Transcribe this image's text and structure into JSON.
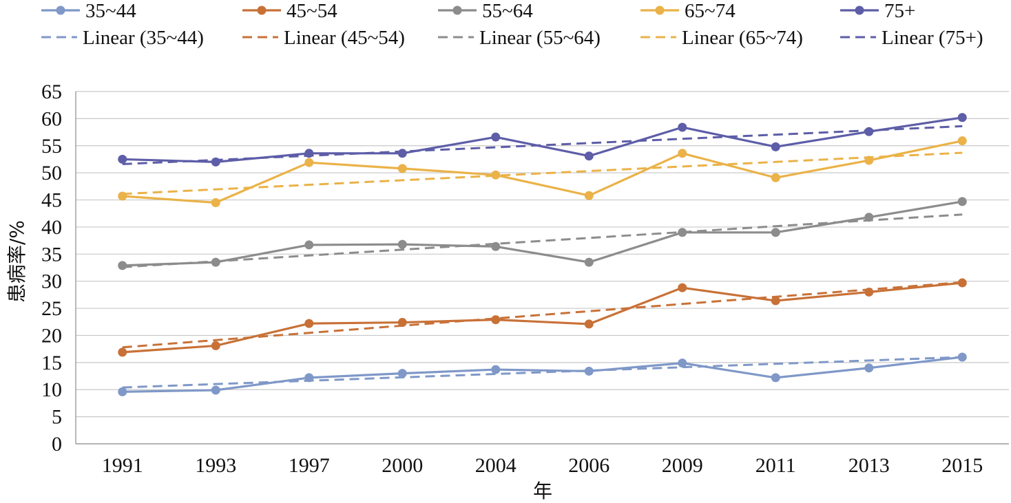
{
  "chart_data": {
    "type": "line",
    "xlabel": "年",
    "ylabel": "患病率/%",
    "ylim": [
      0,
      65
    ],
    "yticks": [
      0,
      5,
      10,
      15,
      20,
      25,
      30,
      35,
      40,
      45,
      50,
      55,
      60,
      65
    ],
    "categories": [
      "1991",
      "1993",
      "1997",
      "2000",
      "2004",
      "2006",
      "2009",
      "2011",
      "2013",
      "2015"
    ],
    "grid": "horizontal",
    "legend_position": "top",
    "series": [
      {
        "name": "35~44",
        "color": "#7f98c8",
        "values": [
          9.6,
          9.9,
          12.2,
          13.0,
          13.7,
          13.4,
          14.9,
          12.2,
          14.0,
          16.0
        ],
        "trend_name": "Linear (35~44)",
        "trend": [
          10.4,
          16.0
        ]
      },
      {
        "name": "45~54",
        "color": "#c87137",
        "values": [
          16.9,
          18.1,
          22.2,
          22.4,
          22.9,
          22.1,
          28.8,
          26.4,
          28.0,
          29.7
        ],
        "trend_name": "Linear (45~54)",
        "trend": [
          17.8,
          29.8
        ]
      },
      {
        "name": "55~64",
        "color": "#8c8c8c",
        "values": [
          32.9,
          33.5,
          36.7,
          36.8,
          36.4,
          33.5,
          39.0,
          39.0,
          41.8,
          44.7
        ],
        "trend_name": "Linear (55~64)",
        "trend": [
          32.6,
          42.3
        ]
      },
      {
        "name": "65~74",
        "color": "#eab248",
        "values": [
          45.7,
          44.5,
          51.9,
          50.8,
          49.6,
          45.8,
          53.6,
          49.1,
          52.3,
          55.9
        ],
        "trend_name": "Linear (65~74)",
        "trend": [
          46.1,
          53.7
        ]
      },
      {
        "name": "75+",
        "color": "#5d5da8",
        "values": [
          52.5,
          52.0,
          53.6,
          53.6,
          56.6,
          53.1,
          58.4,
          54.8,
          57.6,
          60.2
        ],
        "trend_name": "Linear (75+)",
        "trend": [
          51.6,
          58.6
        ]
      }
    ]
  }
}
